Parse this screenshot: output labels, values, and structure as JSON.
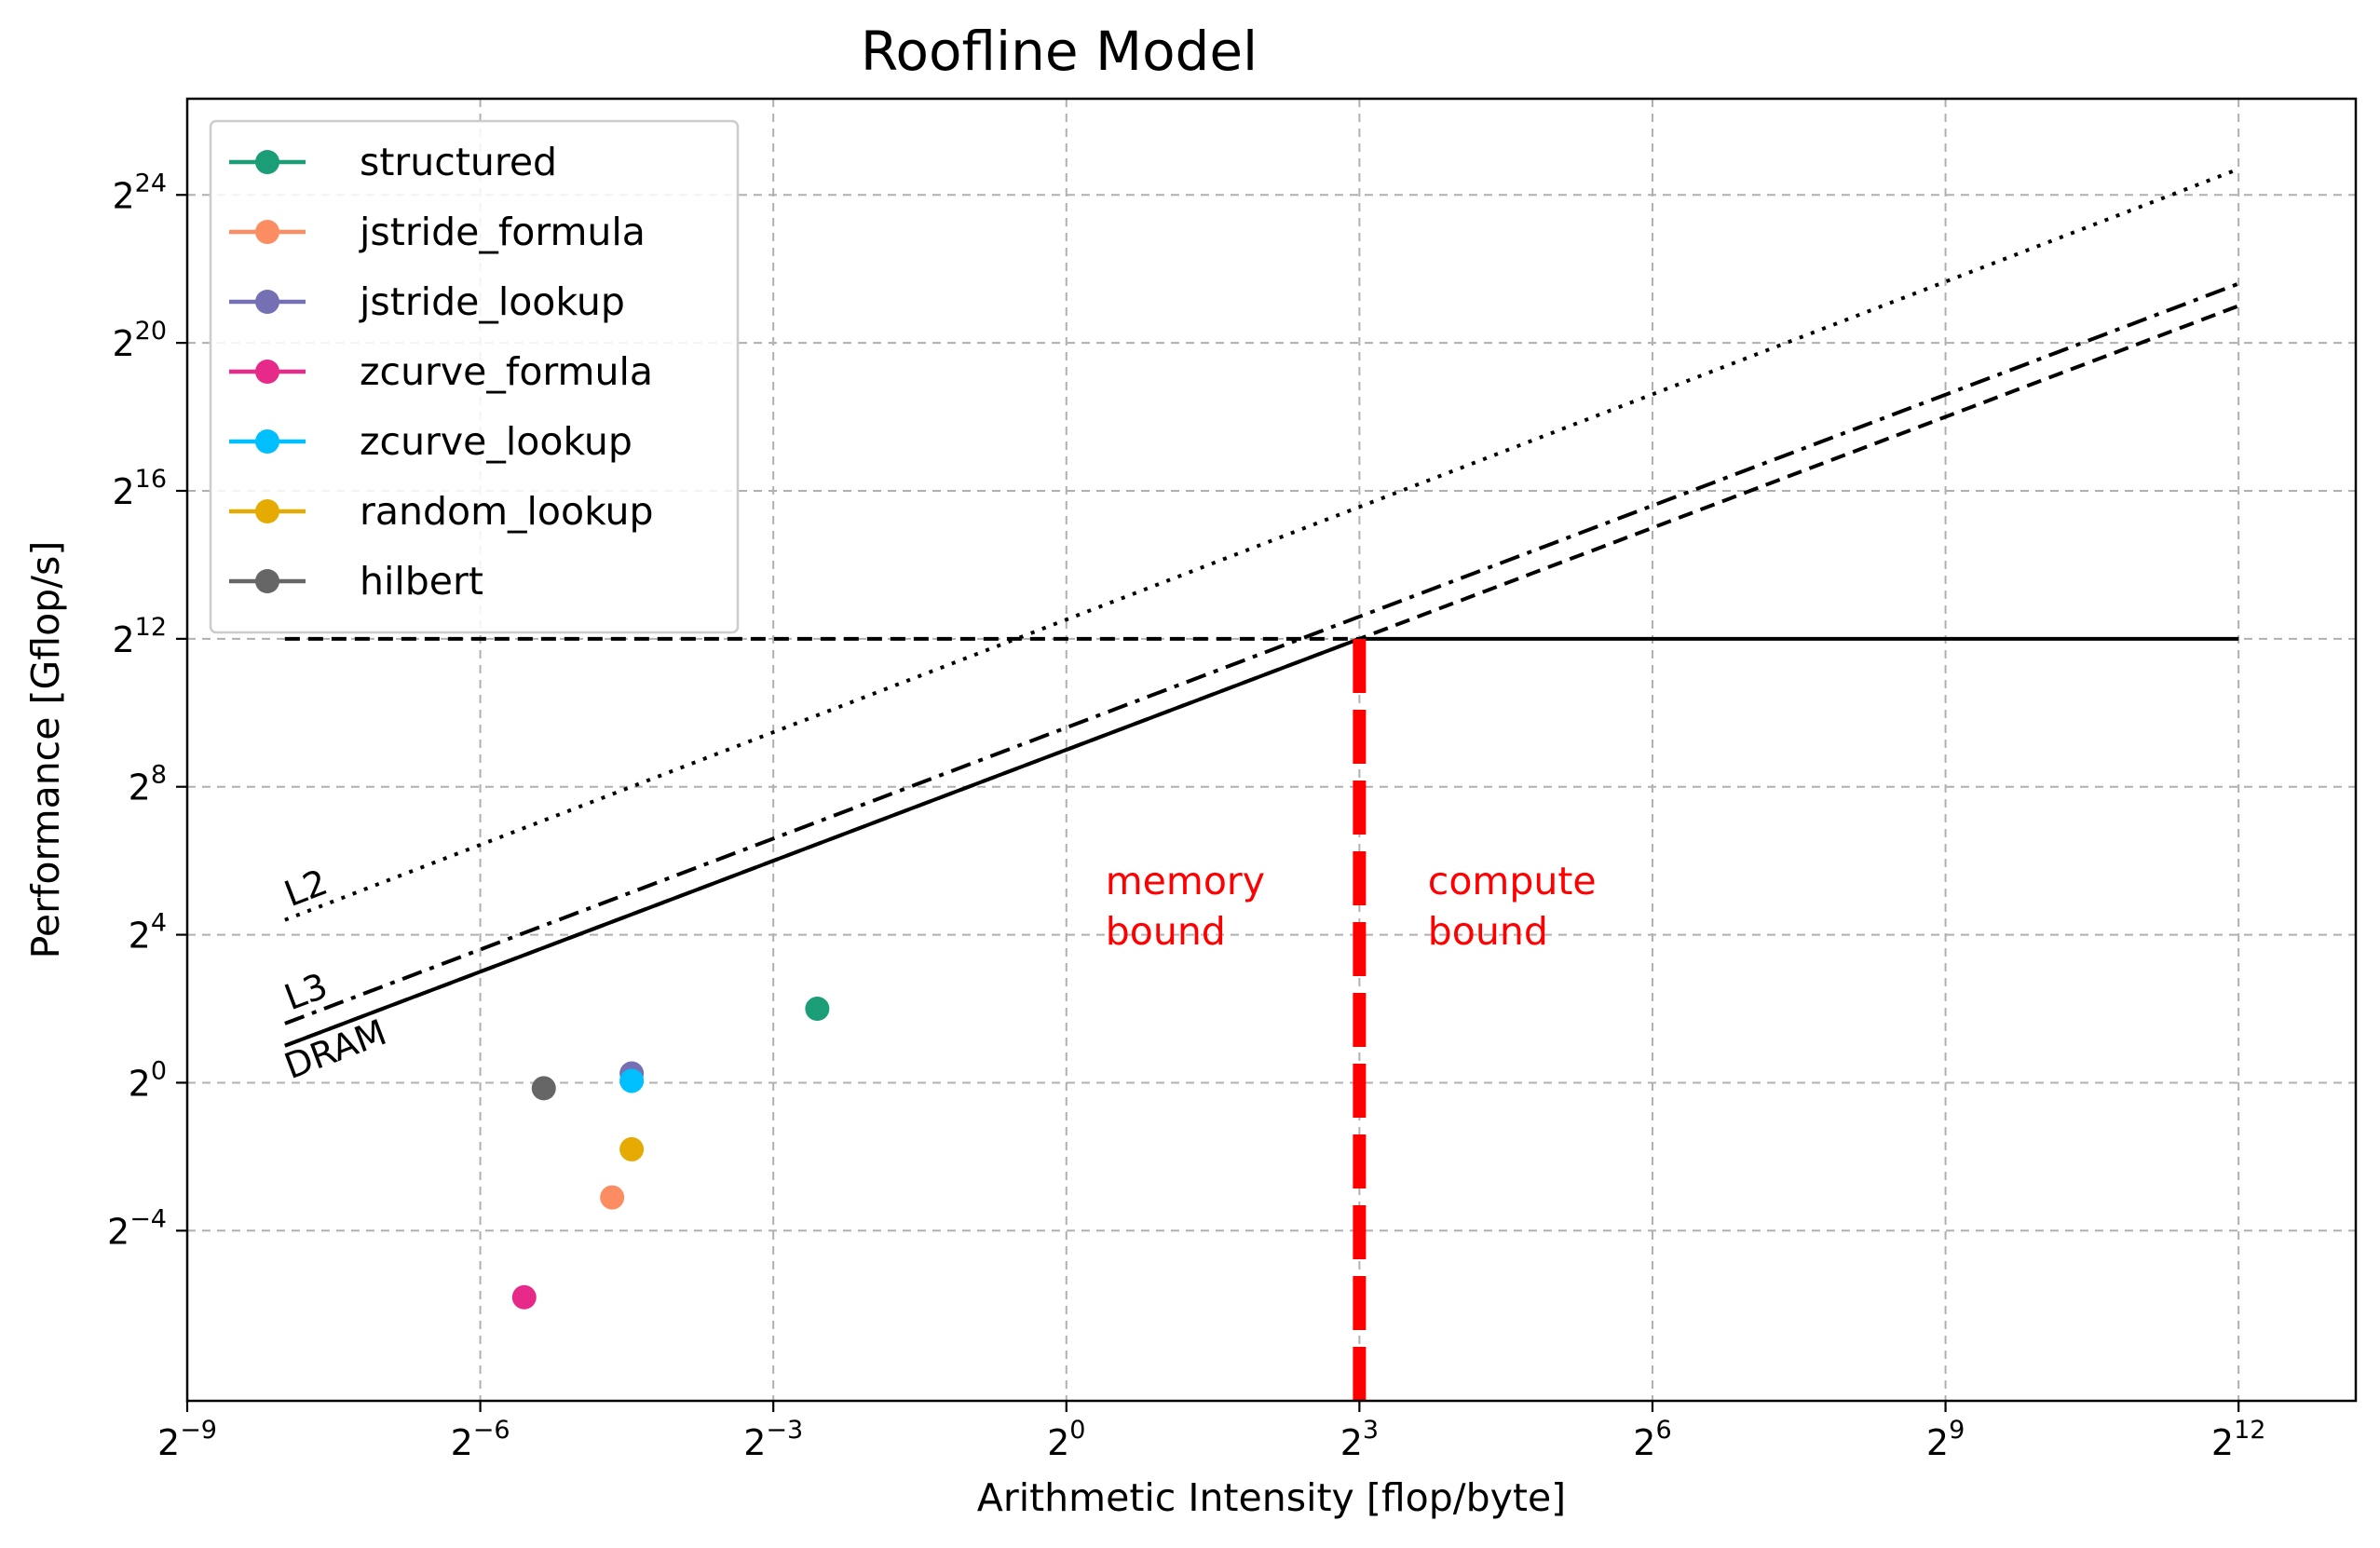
{
  "chart_data": {
    "type": "line",
    "title": "Roofline Model",
    "xlabel": "Arithmetic Intensity [flop/byte]",
    "ylabel": "Performance [Gflop/s]",
    "x_scale": "log2",
    "y_scale": "log2",
    "xlim_log2": [
      -9,
      13.2
    ],
    "ylim_log2": [
      -8.6,
      26.6
    ],
    "x_ticks": [
      {
        "base": "2",
        "exp": "−9",
        "log2": -9
      },
      {
        "base": "2",
        "exp": "−6",
        "log2": -6
      },
      {
        "base": "2",
        "exp": "−3",
        "log2": -3
      },
      {
        "base": "2",
        "exp": "0",
        "log2": 0
      },
      {
        "base": "2",
        "exp": "3",
        "log2": 3
      },
      {
        "base": "2",
        "exp": "6",
        "log2": 6
      },
      {
        "base": "2",
        "exp": "9",
        "log2": 9
      },
      {
        "base": "2",
        "exp": "12",
        "log2": 12
      }
    ],
    "y_ticks": [
      {
        "base": "2",
        "exp": "−4",
        "log2": -4
      },
      {
        "base": "2",
        "exp": "0",
        "log2": 0
      },
      {
        "base": "2",
        "exp": "4",
        "log2": 4
      },
      {
        "base": "2",
        "exp": "8",
        "log2": 8
      },
      {
        "base": "2",
        "exp": "12",
        "log2": 12
      },
      {
        "base": "2",
        "exp": "16",
        "log2": 16
      },
      {
        "base": "2",
        "exp": "20",
        "log2": 20
      },
      {
        "base": "2",
        "exp": "24",
        "log2": 24
      }
    ],
    "grid": true,
    "legend_position": "top-left",
    "roofs": [
      {
        "label": "L2",
        "style": "dotted",
        "x_log2": [
          -8,
          12
        ],
        "y_log2": [
          4.4,
          24.7
        ]
      },
      {
        "label": "L3",
        "style": "dashdot",
        "x_log2": [
          -8,
          12
        ],
        "y_log2": [
          1.6,
          21.6
        ]
      },
      {
        "label": "",
        "style": "dashed",
        "x_log2": [
          -8,
          12
        ],
        "y_log2": [
          1.0,
          21.0
        ]
      },
      {
        "label": "DRAM",
        "style": "solid",
        "x_log2": [
          -8,
          3
        ],
        "y_log2": [
          1.0,
          12.0
        ]
      },
      {
        "label": "",
        "style": "dashed",
        "x_log2": [
          -8,
          3
        ],
        "y_log2": [
          12.0,
          12.0
        ]
      },
      {
        "label": "",
        "style": "solid",
        "x_log2": [
          3,
          12
        ],
        "y_log2": [
          12.0,
          12.0
        ]
      }
    ],
    "ridge": {
      "x_log2": 3,
      "y_log2_from": -8.6,
      "y_log2_to": 12,
      "color": "#ff0000"
    },
    "annotations": [
      {
        "text_lines": [
          "memory",
          "bound"
        ],
        "x_log2": 0.4,
        "y_log2": 5.1,
        "color": "#ff0000"
      },
      {
        "text_lines": [
          "compute",
          "bound"
        ],
        "x_log2": 3.7,
        "y_log2": 5.1,
        "color": "#ff0000"
      }
    ],
    "series": [
      {
        "name": "structured",
        "color": "#1b9e77",
        "x_log2": [
          -2.55
        ],
        "y_log2": [
          2.0
        ]
      },
      {
        "name": "jstride_formula",
        "color": "#fc8d62",
        "x_log2": [
          -4.65
        ],
        "y_log2": [
          -3.1
        ]
      },
      {
        "name": "jstride_lookup",
        "color": "#7570b3",
        "x_log2": [
          -4.45
        ],
        "y_log2": [
          0.25
        ]
      },
      {
        "name": "zcurve_formula",
        "color": "#e7298a",
        "x_log2": [
          -5.55
        ],
        "y_log2": [
          -5.8
        ]
      },
      {
        "name": "zcurve_lookup",
        "color": "#00bfff",
        "x_log2": [
          -4.45
        ],
        "y_log2": [
          0.05
        ]
      },
      {
        "name": "random_lookup",
        "color": "#e6ab02",
        "x_log2": [
          -4.45
        ],
        "y_log2": [
          -1.8
        ]
      },
      {
        "name": "hilbert",
        "color": "#666666",
        "x_log2": [
          -5.35
        ],
        "y_log2": [
          -0.15
        ]
      }
    ]
  }
}
